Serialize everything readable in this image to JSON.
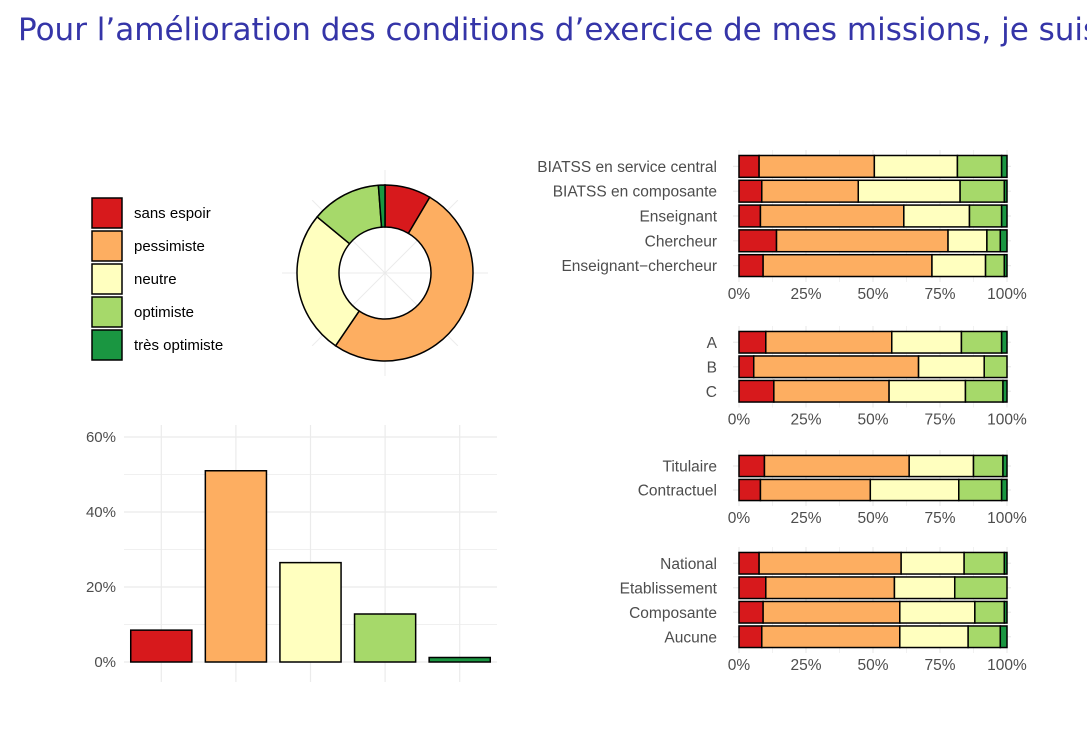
{
  "title": "Pour l’amélioration des conditions d’exercice de mes missions, je suis :",
  "colors": {
    "sans_espoir": "#d7191c",
    "pessimiste": "#fdae61",
    "neutre": "#ffffbf",
    "optimiste": "#a6d96a",
    "tres_optimiste": "#1a9641",
    "grid": "#ebebeb",
    "axis_text": "#4d4d4d"
  },
  "chart_data": [
    {
      "id": "legend-pie",
      "type": "pie",
      "donut": true,
      "categories": [
        "sans espoir",
        "pessimiste",
        "neutre",
        "optimiste",
        "très optimiste"
      ],
      "values": [
        8.5,
        51,
        26.5,
        12.8,
        1.2
      ]
    },
    {
      "id": "overall-bars",
      "type": "bar",
      "categories": [
        "sans espoir",
        "pessimiste",
        "neutre",
        "optimiste",
        "très optimiste"
      ],
      "values": [
        8.5,
        51,
        26.5,
        12.8,
        1.2
      ],
      "ylim": [
        0,
        60
      ],
      "yticks": [
        "0%",
        "20%",
        "40%",
        "60%"
      ],
      "ytick_values": [
        0,
        20,
        40,
        60
      ]
    },
    {
      "id": "stacked-statut",
      "type": "bar",
      "orientation": "horizontal-stacked-100",
      "categories": [
        "BIATSS en service central",
        "BIATSS en composante",
        "Enseignant",
        "Chercheur",
        "Enseignant−chercheur"
      ],
      "series": [
        {
          "name": "sans espoir",
          "values": [
            7.5,
            8.5,
            8,
            14,
            9
          ]
        },
        {
          "name": "pessimiste",
          "values": [
            43,
            36,
            53.5,
            64,
            63
          ]
        },
        {
          "name": "neutre",
          "values": [
            31,
            38,
            24.5,
            14.5,
            20
          ]
        },
        {
          "name": "optimiste",
          "values": [
            16.5,
            16.5,
            12,
            5,
            7
          ]
        },
        {
          "name": "très optimiste",
          "values": [
            2,
            1,
            2,
            2.5,
            1
          ]
        }
      ],
      "xticks": [
        "0%",
        "25%",
        "50%",
        "75%",
        "100%"
      ]
    },
    {
      "id": "stacked-abc",
      "type": "bar",
      "orientation": "horizontal-stacked-100",
      "categories": [
        "A",
        "B",
        "C"
      ],
      "series": [
        {
          "name": "sans espoir",
          "values": [
            10,
            5.5,
            13
          ]
        },
        {
          "name": "pessimiste",
          "values": [
            47,
            61.5,
            43
          ]
        },
        {
          "name": "neutre",
          "values": [
            26,
            24.5,
            28.5
          ]
        },
        {
          "name": "optimiste",
          "values": [
            15,
            8.5,
            14
          ]
        },
        {
          "name": "très optimiste",
          "values": [
            2,
            0,
            1.5
          ]
        }
      ],
      "xticks": [
        "0%",
        "25%",
        "50%",
        "75%",
        "100%"
      ]
    },
    {
      "id": "stacked-contrat",
      "type": "bar",
      "orientation": "horizontal-stacked-100",
      "categories": [
        "Titulaire",
        "Contractuel"
      ],
      "series": [
        {
          "name": "sans espoir",
          "values": [
            9.5,
            8
          ]
        },
        {
          "name": "pessimiste",
          "values": [
            54,
            41
          ]
        },
        {
          "name": "neutre",
          "values": [
            24,
            33
          ]
        },
        {
          "name": "optimiste",
          "values": [
            11,
            16
          ]
        },
        {
          "name": "très optimiste",
          "values": [
            1.5,
            2
          ]
        }
      ],
      "xticks": [
        "0%",
        "25%",
        "50%",
        "75%",
        "100%"
      ]
    },
    {
      "id": "stacked-niveau",
      "type": "bar",
      "orientation": "horizontal-stacked-100",
      "categories": [
        "National",
        "Etablissement",
        "Composante",
        "Aucune"
      ],
      "series": [
        {
          "name": "sans espoir",
          "values": [
            7.5,
            10,
            9,
            8.5
          ]
        },
        {
          "name": "pessimiste",
          "values": [
            53,
            48,
            51,
            51.5
          ]
        },
        {
          "name": "neutre",
          "values": [
            23.5,
            22.5,
            28,
            25.5
          ]
        },
        {
          "name": "optimiste",
          "values": [
            15,
            19.5,
            11,
            12
          ]
        },
        {
          "name": "très optimiste",
          "values": [
            1,
            0,
            1,
            2.5
          ]
        }
      ],
      "xticks": [
        "0%",
        "25%",
        "50%",
        "75%",
        "100%"
      ]
    }
  ]
}
